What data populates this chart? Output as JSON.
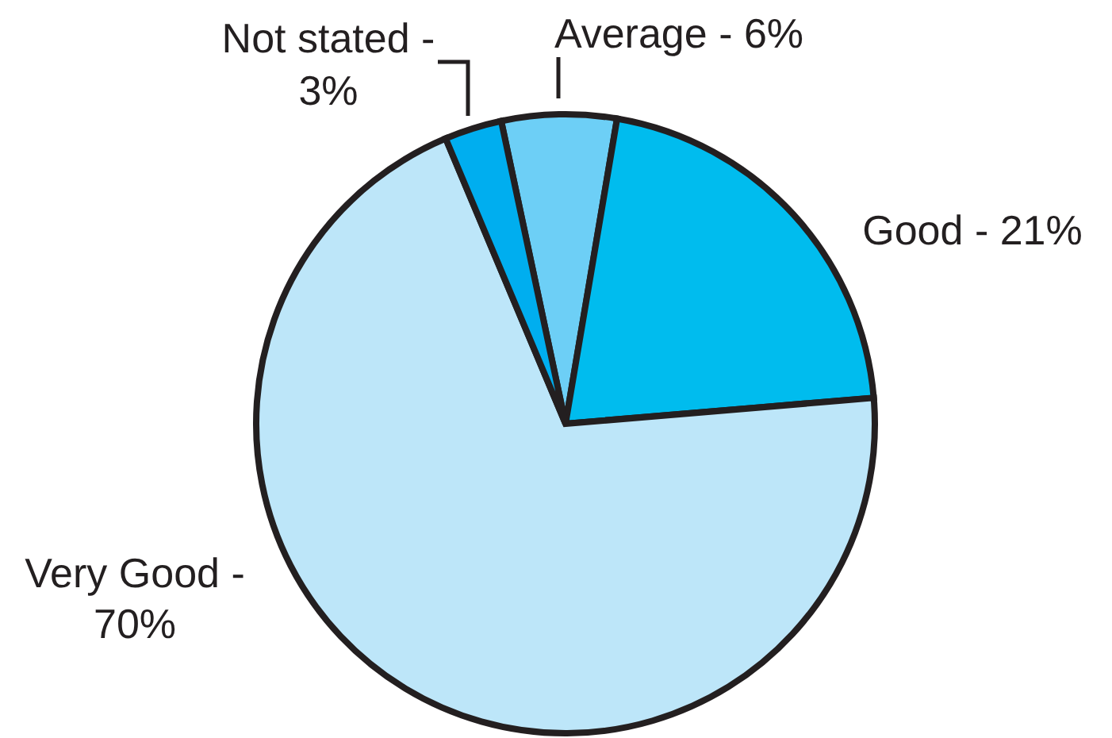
{
  "chart_data": {
    "type": "pie",
    "categories": [
      "Average -",
      "Good -",
      "Very Good -",
      "Not stated -"
    ],
    "values": [
      6,
      21,
      70,
      3
    ],
    "colors": [
      "#6dcff6",
      "#00bcee",
      "#bde6f9",
      "#00aeef"
    ],
    "value_labels": [
      "6%",
      "21%",
      "70%",
      "3%"
    ]
  }
}
